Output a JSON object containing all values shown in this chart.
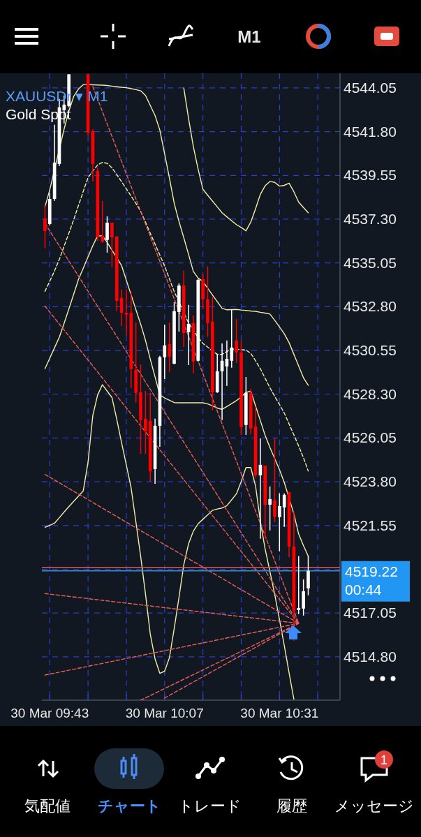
{
  "chart_data": {
    "type": "candlestick",
    "title": "XAUUSDr ▾ M1",
    "subtitle": "Gold Spot",
    "ylim": [
      4512.57,
      4544.8
    ],
    "categories": [
      null,
      "30 Mar 09:43",
      null,
      null,
      null,
      null,
      null,
      null,
      null,
      null,
      null,
      null,
      null,
      null,
      null,
      null,
      null,
      null,
      null,
      null,
      null,
      null,
      null,
      null,
      null,
      "30 Mar 10:07",
      null,
      null,
      null,
      null,
      null,
      null,
      null,
      null,
      null,
      null,
      null,
      null,
      null,
      null,
      null,
      null,
      null,
      null,
      null,
      null,
      null,
      null,
      null,
      "30 Mar 10:31",
      null,
      null,
      null,
      null,
      null,
      null
    ],
    "yticks": [
      4544.05,
      {
        "value": 4541.8,
        "label": "4541.80"
      },
      4539.55,
      {
        "value": 4537.3,
        "label": "4537.30"
      },
      4535.05,
      {
        "value": 4532.8,
        "label": "4532.80"
      },
      4530.55,
      {
        "value": 4528.3,
        "label": "4528.30"
      },
      4526.05,
      {
        "value": 4523.8,
        "label": "4523.80"
      },
      4521.55,
      {
        "value": 4519.3,
        "label": null
      },
      4517.05,
      {
        "value": 4514.8,
        "label": "4514.80"
      }
    ],
    "grid": true,
    "ref_lines": [
      {
        "axis": "y",
        "value": 4519.39,
        "color": "#e05a5a"
      },
      {
        "axis": "y",
        "value": 4519.22,
        "label": "4519.22",
        "color": "#2196f3"
      }
    ],
    "annotations": [
      "00:44",
      "M1",
      "気配値",
      "チャート",
      "トレード",
      "履歴",
      "メッセージ",
      "1"
    ],
    "colors": [
      "#ff0000",
      "#ffffff",
      "#ffffff",
      "#ffffff",
      "#ffffff",
      "#ffffff",
      null,
      null,
      null,
      "#ff0000",
      "#ff0000",
      "#ff0000",
      "#ff0000",
      "#ffffff",
      "#ff0000",
      "#ff0000",
      "#ff0000",
      "#ff0000",
      "#ff0000",
      "#ff0000",
      "#ff0000",
      "#ff0000",
      "#ff0000",
      "#ffffff",
      "#ffffff",
      "#ffffff",
      "#ff0000",
      "#ffffff",
      "#ffffff",
      "#ff0000",
      "#ffffff",
      "#ff0000",
      "#ffffff",
      "#ff0000",
      "#ff0000",
      "#ff0000",
      "#ffffff",
      "#ffffff",
      "#ffffff",
      "#ffffff",
      "#ff0000",
      "#ff0000",
      "#ffffff",
      "#ff0000",
      "#ff0000",
      "#ffffff",
      "#ff0000",
      "#ffffff",
      "#ff0000",
      "#ffffff",
      "#ffffff",
      "#ff0000",
      "#ff0000",
      "#ffffff",
      "#ffffff",
      "#ffffff"
    ],
    "ohlc": [
      [
        4537.34,
        4538.02,
        4535.8,
        4536.69
      ],
      [
        4537.05,
        4538.63,
        4536.98,
        4538.34
      ],
      [
        4538.34,
        4542.15,
        4538.24,
        4540.21
      ],
      [
        4540.14,
        4543.48,
        4540.03,
        4543.05
      ],
      [
        4542.9,
        4543.66,
        4542.22,
        4543.19
      ],
      [
        4543.12,
        4544.75,
        4543.05,
        4544.75
      ],
      null,
      null,
      null,
      [
        4544.75,
        4544.75,
        4541.57,
        4541.75
      ],
      [
        4541.82,
        4541.93,
        4539.24,
        4540.14
      ],
      [
        4539.78,
        4539.96,
        4536.19,
        4536.37
      ],
      [
        4536.44,
        4538.24,
        4536.08,
        4536.15
      ],
      [
        4536.23,
        4537.45,
        4535.58,
        4537.12
      ],
      [
        4537.12,
        4537.12,
        4534.83,
        4536.37
      ],
      [
        4536.41,
        4536.41,
        4532.57,
        4533.1
      ],
      [
        4533.25,
        4533.68,
        4531.81,
        4532.49
      ],
      [
        4532.49,
        4533.68,
        4531.31,
        4532.39
      ],
      [
        4532.49,
        4533.53,
        4528.62,
        4529.59
      ],
      [
        4529.55,
        4531.99,
        4527.86,
        4528.37
      ],
      [
        4528.4,
        4529.84,
        4525.24,
        4526.97
      ],
      [
        4527.04,
        4528.47,
        4525.24,
        4526.39
      ],
      [
        4526.93,
        4528.37,
        4523.81,
        4524.35
      ],
      [
        4524.45,
        4527.04,
        4523.7,
        4526.68
      ],
      [
        4526.68,
        4530.27,
        4525.6,
        4530.2
      ],
      [
        4530.2,
        4531.88,
        4529.08,
        4530.81
      ],
      [
        4530.88,
        4531.99,
        4529.44,
        4530.23
      ],
      [
        4529.87,
        4533.03,
        4529.84,
        4532.57
      ],
      [
        4532.53,
        4534.0,
        4531.52,
        4533.89
      ],
      [
        4533.89,
        4534.65,
        4530.73,
        4531.45
      ],
      [
        4531.49,
        4532.89,
        4529.8,
        4531.92
      ],
      [
        4531.96,
        4532.35,
        4529.37,
        4529.98
      ],
      [
        4530.02,
        4534.22,
        4529.98,
        4534.18
      ],
      [
        4534.22,
        4534.47,
        4532.67,
        4533.18
      ],
      [
        4533.18,
        4534.86,
        4531.24,
        4531.96
      ],
      [
        4532.03,
        4533.32,
        4527.47,
        4528.4
      ],
      [
        4528.4,
        4530.38,
        4528.37,
        4529.48
      ],
      [
        4529.48,
        4530.91,
        4526.97,
        4530.02
      ],
      [
        4529.73,
        4531.06,
        4528.73,
        4530.12
      ],
      [
        4530.02,
        4532.64,
        4529.66,
        4530.7
      ],
      [
        4531.06,
        4532.17,
        4529.91,
        4530.45
      ],
      [
        4530.45,
        4531.06,
        4526.21,
        4526.61
      ],
      [
        4526.72,
        4529.19,
        4526.21,
        4528.37
      ],
      [
        4528.37,
        4528.58,
        4526.25,
        4526.54
      ],
      [
        4526.64,
        4527.65,
        4523.99,
        4524.13
      ],
      [
        4524.13,
        4526.03,
        4520.87,
        4524.67
      ],
      [
        4524.63,
        4524.63,
        4520.83,
        4522.62
      ],
      [
        4522.62,
        4523.56,
        4521.3,
        4522.91
      ],
      [
        4522.84,
        4526.03,
        4521.73,
        4522.01
      ],
      [
        4521.98,
        4523.2,
        4520.22,
        4522.55
      ],
      [
        4522.48,
        4523.2,
        4521.48,
        4523.13
      ],
      [
        4523.27,
        4523.27,
        4519.93,
        4520.47
      ],
      [
        4520.47,
        4522.26,
        4515.63,
        4517.17
      ],
      [
        4517.2,
        4519.97,
        4516.99,
        4517.31
      ],
      [
        4517.28,
        4518.78,
        4516.92,
        4518.17
      ],
      [
        4518.32,
        4519.97,
        4517.96,
        4519.22
      ]
    ],
    "series": [
      {
        "type": "line",
        "color": "#f3eca6",
        "line_style": "solid",
        "values": [
          4537.93,
          4538.8,
          null,
          null,
          4541.93,
          4542.86,
          4543.61,
          4543.99,
          4544.22,
          4544.22,
          4544.21,
          4544.2,
          4544.19,
          4544.17,
          4544.14,
          4544.11,
          4544.08,
          4544.06,
          4544.01,
          4543.96,
          4543.9,
          4543.66,
          4543.15,
          4542.63,
          4541.88,
          4540.66,
          4539.42,
          4538.12,
          4537.18,
          4536.35,
          4535.49,
          4534.61,
          4534.27,
          4534.09,
          4533.75,
          4533.4,
          4533.06,
          4532.72,
          4532.64,
          4532.65,
          4532.66,
          4532.63,
          4532.61,
          4532.58,
          4532.56,
          4532.51,
          4532.47,
          4532.42,
          4532.1,
          4531.76,
          4531.41,
          4530.95,
          4530.35,
          4529.75,
          4529.15,
          4528.76
        ]
      },
      {
        "type": "line",
        "color": "#f3eca6",
        "line_style": "solid",
        "values": [
          null,
          null,
          null,
          null,
          null,
          null,
          null,
          null,
          null,
          null,
          null,
          null,
          null,
          null,
          null,
          null,
          null,
          null,
          null,
          null,
          null,
          null,
          null,
          null,
          null,
          null,
          null,
          null,
          null,
          4544.05,
          4542.48,
          4541.03,
          4539.87,
          4538.84,
          4538.53,
          4538.23,
          4537.93,
          4537.63,
          4537.42,
          4537.22,
          4537.02,
          4536.87,
          4536.7,
          4537.15,
          4537.84,
          4538.58,
          4539.02,
          4539.24,
          4539.19,
          4539.0,
          4539.04,
          4539.15,
          4538.71,
          4538.18,
          4537.9,
          4537.63
        ]
      },
      {
        "type": "line",
        "color": "#f3eca6",
        "line_style": "dashed",
        "values": [
          4533.59,
          4534.11,
          4534.64,
          4535.23,
          4535.91,
          4536.58,
          4537.27,
          4538.0,
          4538.73,
          4539.44,
          4539.77,
          4540.09,
          4540.22,
          4540.17,
          4539.94,
          4539.59,
          4539.23,
          4538.86,
          4538.49,
          4538.11,
          4537.71,
          4537.15,
          4536.58,
          4536.02,
          4535.46,
          4534.89,
          4534.23,
          4533.58,
          null,
          null,
          4531.96,
          4531.59,
          4531.22,
          4530.91,
          4530.72,
          4530.53,
          4530.35,
          4530.35,
          4530.49,
          4530.63,
          4530.61,
          4530.59,
          4530.57,
          4530.4,
          4530.02,
          4529.61,
          4529.12,
          4528.63,
          4528.19,
          4527.77,
          4527.33,
          4526.77,
          4526.21,
          4525.64,
          4525.04,
          4524.35
        ]
      },
      {
        "type": "line",
        "color": "#f3eca6",
        "line_style": "solid",
        "values": [
          4529.61,
          4530.15,
          4530.69,
          4531.23,
          4531.94,
          4532.69,
          4533.44,
          4534.2,
          4534.78,
          4535.36,
          4535.94,
          4536.44,
          4536.44,
          4536.11,
          4535.71,
          4535.32,
          4534.92,
          4534.16,
          4533.41,
          4532.65,
          4531.9,
          4531.07,
          4530.11,
          4529.19,
          4528.26,
          4528.11,
          4527.99,
          4527.87,
          4527.86,
          4527.86,
          4527.86,
          4527.86,
          4527.86,
          4527.86,
          4527.8,
          4527.7,
          4527.59,
          4527.52,
          4527.67,
          4527.82,
          4527.97,
          4528.17,
          4528.39,
          4528.46,
          4527.7,
          4526.94,
          4526.18,
          4525.56,
          4524.99,
          4524.42,
          4523.76,
          null,
          4522.15,
          4521.11,
          4520.52,
          4519.97
        ]
      },
      {
        "type": "line",
        "color": "#f3eca6",
        "line_style": "solid",
        "values": [
          4521.46,
          4521.56,
          4521.67,
          4521.95,
          4522.24,
          4522.52,
          4522.79,
          4523.06,
          4523.33,
          4524.8,
          4527.21,
          4528.26,
          4528.79,
          4528.46,
          4528.13,
          4527.01,
          4525.82,
          4524.66,
          4523.49,
          4521.73,
          4519.96,
          4518.03,
          4515.97,
          4514.69,
          4513.95,
          4514.06,
          4514.75,
          4516.25,
          4517.85,
          4519.53,
          4520.61,
          4521.26,
          4521.64,
          4521.87,
          4522.1,
          4522.33,
          4522.4,
          4522.45,
          4522.57,
          4522.87,
          4523.18,
          4523.81,
          4524.53,
          4524.53,
          4523.58,
          4521.76,
          4520.34,
          4519.18,
          4518.01,
          4516.7,
          4515.37,
          4513.97,
          4512.62,
          null,
          null,
          null
        ]
      },
      {
        "type": "line",
        "color": "#e8605a",
        "line_style": "dashed",
        "values": [
          4537.09,
          null,
          null,
          null,
          null,
          null,
          null,
          null,
          null,
          null,
          null,
          null,
          null,
          null,
          null,
          null,
          null,
          null,
          null,
          null,
          null,
          null,
          null,
          null,
          null,
          null,
          null,
          null,
          null,
          null,
          null,
          null,
          null,
          null,
          null,
          null,
          null,
          null,
          null,
          null,
          null,
          null,
          null,
          null,
          null,
          null,
          null,
          null,
          null,
          null,
          null,
          null,
          null,
          4516.52,
          null,
          null
        ]
      },
      {
        "type": "line",
        "color": "#e8605a",
        "line_style": "dashed",
        "values": [
          4532.83,
          null,
          null,
          null,
          null,
          null,
          null,
          null,
          null,
          null,
          null,
          null,
          null,
          null,
          null,
          null,
          null,
          null,
          null,
          null,
          null,
          null,
          null,
          null,
          null,
          null,
          null,
          null,
          null,
          null,
          null,
          null,
          null,
          null,
          null,
          null,
          null,
          null,
          null,
          null,
          null,
          null,
          null,
          null,
          null,
          null,
          null,
          null,
          null,
          null,
          null,
          null,
          null,
          4516.52,
          null,
          null
        ]
      },
      {
        "type": "line",
        "color": "#e8605a",
        "line_style": "dashed",
        "values": [
          4524.18,
          null,
          null,
          null,
          null,
          null,
          null,
          null,
          null,
          null,
          null,
          null,
          null,
          null,
          null,
          null,
          null,
          null,
          null,
          null,
          null,
          null,
          null,
          null,
          null,
          null,
          null,
          null,
          null,
          null,
          null,
          null,
          null,
          null,
          null,
          null,
          null,
          null,
          null,
          null,
          null,
          null,
          null,
          null,
          null,
          null,
          null,
          null,
          null,
          null,
          null,
          null,
          null,
          4516.52,
          null,
          null
        ]
      },
      {
        "type": "line",
        "color": "#e8605a",
        "line_style": "dashed",
        "values": [
          4518.05,
          null,
          null,
          null,
          null,
          null,
          null,
          null,
          null,
          null,
          null,
          null,
          null,
          null,
          null,
          null,
          null,
          null,
          null,
          null,
          null,
          null,
          null,
          null,
          null,
          null,
          null,
          null,
          null,
          null,
          null,
          null,
          null,
          null,
          null,
          null,
          null,
          null,
          null,
          null,
          null,
          null,
          null,
          null,
          null,
          null,
          null,
          null,
          null,
          null,
          null,
          null,
          null,
          4516.52,
          null,
          null
        ]
      },
      {
        "type": "line",
        "color": "#e8605a",
        "line_style": "dashed",
        "values": [
          4513.86,
          null,
          null,
          null,
          null,
          null,
          null,
          null,
          null,
          null,
          null,
          null,
          null,
          null,
          null,
          null,
          null,
          null,
          null,
          null,
          null,
          null,
          null,
          null,
          null,
          null,
          null,
          null,
          null,
          null,
          null,
          null,
          null,
          null,
          null,
          null,
          null,
          null,
          null,
          null,
          null,
          null,
          null,
          null,
          null,
          null,
          null,
          null,
          null,
          null,
          null,
          null,
          null,
          4516.52,
          null,
          null
        ]
      },
      {
        "type": "line",
        "color": "#e8605a",
        "line_style": "dashed",
        "values": [
          null,
          null,
          null,
          null,
          null,
          null,
          null,
          null,
          null,
          null,
          null,
          null,
          null,
          null,
          null,
          null,
          null,
          null,
          null,
          null,
          4512.57,
          null,
          null,
          null,
          null,
          null,
          null,
          null,
          null,
          null,
          null,
          null,
          null,
          null,
          null,
          null,
          null,
          null,
          null,
          null,
          null,
          null,
          null,
          null,
          null,
          null,
          null,
          null,
          null,
          null,
          null,
          null,
          null,
          4516.52,
          null,
          null
        ]
      },
      {
        "type": "line",
        "color": "#e8605a",
        "line_style": "dashed",
        "values": [
          null,
          null,
          null,
          null,
          null,
          null,
          null,
          null,
          null,
          null,
          null,
          null,
          null,
          null,
          null,
          null,
          null,
          null,
          null,
          null,
          null,
          null,
          null,
          null,
          null,
          4512.68,
          null,
          null,
          null,
          null,
          null,
          null,
          null,
          null,
          null,
          null,
          null,
          null,
          null,
          null,
          null,
          null,
          null,
          null,
          null,
          null,
          null,
          null,
          null,
          null,
          null,
          null,
          null,
          4516.52,
          null,
          null
        ]
      },
      {
        "type": "line",
        "color": "#e8605a",
        "line_style": "dashed",
        "values": [
          null,
          null,
          null,
          null,
          null,
          null,
          null,
          null,
          null,
          null,
          4544.12,
          null,
          null,
          null,
          null,
          null,
          null,
          null,
          null,
          null,
          null,
          null,
          null,
          null,
          null,
          null,
          null,
          null,
          null,
          null,
          null,
          null,
          null,
          null,
          null,
          null,
          null,
          null,
          null,
          null,
          null,
          null,
          null,
          null,
          null,
          null,
          null,
          null,
          null,
          null,
          null,
          null,
          null,
          4516.52,
          null,
          null
        ]
      }
    ]
  }
}
